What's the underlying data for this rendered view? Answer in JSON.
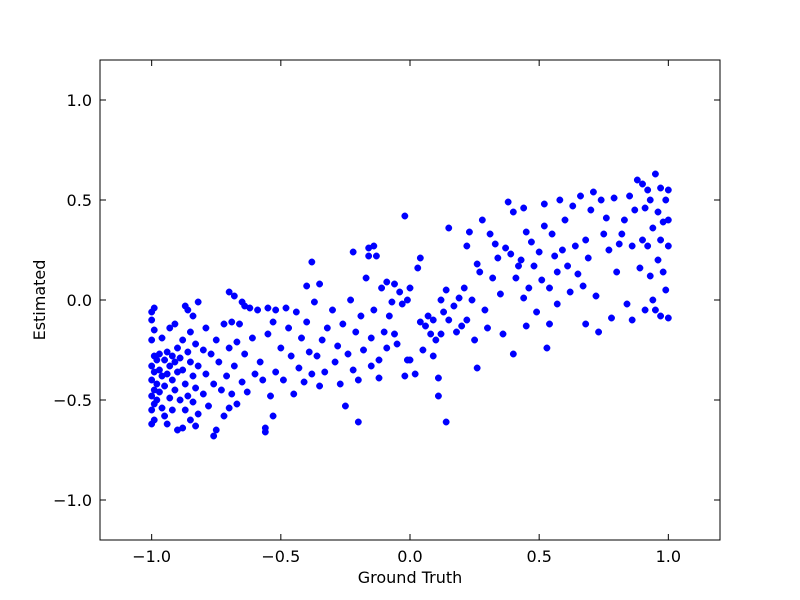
{
  "chart_data": {
    "type": "scatter",
    "title": "",
    "xlabel": "Ground Truth",
    "ylabel": "Estimated",
    "xlim": [
      -1.2,
      1.2
    ],
    "ylim": [
      -1.2,
      1.2
    ],
    "xticks": [
      -1.0,
      -0.5,
      0.0,
      0.5,
      1.0
    ],
    "yticks": [
      -1.0,
      -0.5,
      0.0,
      0.5,
      1.0
    ],
    "xtick_labels": [
      "−1.0",
      "−0.5",
      "0.0",
      "0.5",
      "1.0"
    ],
    "ytick_labels": [
      "−1.0",
      "−0.5",
      "0.0",
      "0.5",
      "1.0"
    ],
    "grid": false,
    "legend": "none",
    "marker_color": "#0000ff",
    "series": [
      {
        "points": [
          [
            -1.0,
            -0.06
          ],
          [
            -0.99,
            -0.04
          ],
          [
            -1.0,
            -0.1
          ],
          [
            -0.99,
            -0.15
          ],
          [
            -1.0,
            -0.2
          ],
          [
            -0.99,
            -0.28
          ],
          [
            -1.0,
            -0.33
          ],
          [
            -0.99,
            -0.36
          ],
          [
            -1.0,
            -0.4
          ],
          [
            -0.99,
            -0.45
          ],
          [
            -1.0,
            -0.48
          ],
          [
            -0.99,
            -0.52
          ],
          [
            -1.0,
            -0.55
          ],
          [
            -0.99,
            -0.6
          ],
          [
            -1.0,
            -0.62
          ],
          [
            -0.98,
            -0.3
          ],
          [
            -0.98,
            -0.42
          ],
          [
            -0.98,
            -0.5
          ],
          [
            -0.97,
            -0.27
          ],
          [
            -0.97,
            -0.35
          ],
          [
            -0.97,
            -0.46
          ],
          [
            -0.96,
            -0.19
          ],
          [
            -0.96,
            -0.38
          ],
          [
            -0.96,
            -0.54
          ],
          [
            -0.95,
            -0.3
          ],
          [
            -0.95,
            -0.43
          ],
          [
            -0.95,
            -0.58
          ],
          [
            -0.94,
            -0.26
          ],
          [
            -0.94,
            -0.37
          ],
          [
            -0.94,
            -0.62
          ],
          [
            -0.93,
            -0.14
          ],
          [
            -0.93,
            -0.33
          ],
          [
            -0.93,
            -0.49
          ],
          [
            -0.92,
            -0.28
          ],
          [
            -0.92,
            -0.4
          ],
          [
            -0.92,
            -0.55
          ],
          [
            -0.91,
            -0.12
          ],
          [
            -0.91,
            -0.31
          ],
          [
            -0.91,
            -0.45
          ],
          [
            -0.9,
            -0.24
          ],
          [
            -0.9,
            -0.36
          ],
          [
            -0.9,
            -0.65
          ],
          [
            -0.89,
            -0.29
          ],
          [
            -0.89,
            -0.5
          ],
          [
            -0.88,
            -0.2
          ],
          [
            -0.88,
            -0.35
          ],
          [
            -0.88,
            -0.64
          ],
          [
            -0.87,
            -0.03
          ],
          [
            -0.87,
            -0.42
          ],
          [
            -0.87,
            -0.55
          ],
          [
            -0.86,
            -0.05
          ],
          [
            -0.86,
            -0.26
          ],
          [
            -0.86,
            -0.48
          ],
          [
            -0.85,
            -0.16
          ],
          [
            -0.85,
            -0.31
          ],
          [
            -0.85,
            -0.6
          ],
          [
            -0.84,
            -0.08
          ],
          [
            -0.84,
            -0.38
          ],
          [
            -0.84,
            -0.51
          ],
          [
            -0.83,
            -0.22
          ],
          [
            -0.83,
            -0.44
          ],
          [
            -0.83,
            -0.63
          ],
          [
            -0.82,
            -0.01
          ],
          [
            -0.82,
            -0.33
          ],
          [
            -0.82,
            -0.57
          ],
          [
            -0.8,
            -0.25
          ],
          [
            -0.8,
            -0.47
          ],
          [
            -0.79,
            -0.14
          ],
          [
            -0.79,
            -0.37
          ],
          [
            -0.78,
            -0.53
          ],
          [
            -0.77,
            -0.27
          ],
          [
            -0.76,
            -0.42
          ],
          [
            -0.76,
            -0.68
          ],
          [
            -0.75,
            -0.2
          ],
          [
            -0.75,
            -0.65
          ],
          [
            -0.74,
            -0.31
          ],
          [
            -0.73,
            -0.45
          ],
          [
            -0.72,
            -0.12
          ],
          [
            -0.72,
            -0.58
          ],
          [
            -0.71,
            -0.38
          ],
          [
            -0.7,
            0.04
          ],
          [
            -0.7,
            -0.24
          ],
          [
            -0.7,
            -0.54
          ],
          [
            -0.69,
            -0.11
          ],
          [
            -0.69,
            -0.47
          ],
          [
            -0.68,
            0.02
          ],
          [
            -0.68,
            -0.33
          ],
          [
            -0.67,
            -0.21
          ],
          [
            -0.67,
            -0.52
          ],
          [
            -0.66,
            -0.12
          ],
          [
            -0.65,
            -0.01
          ],
          [
            -0.65,
            -0.41
          ],
          [
            -0.64,
            -0.03
          ],
          [
            -0.64,
            -0.27
          ],
          [
            -0.63,
            -0.46
          ],
          [
            -0.62,
            -0.04
          ],
          [
            -0.61,
            -0.19
          ],
          [
            -0.6,
            -0.37
          ],
          [
            -0.59,
            -0.05
          ],
          [
            -0.58,
            -0.31
          ],
          [
            -0.57,
            -0.4
          ],
          [
            -0.56,
            -0.64
          ],
          [
            -0.56,
            -0.66
          ],
          [
            -0.55,
            -0.04
          ],
          [
            -0.55,
            -0.17
          ],
          [
            -0.54,
            -0.48
          ],
          [
            -0.53,
            -0.11
          ],
          [
            -0.53,
            -0.58
          ],
          [
            -0.52,
            -0.05
          ],
          [
            -0.52,
            -0.36
          ],
          [
            -0.5,
            -0.24
          ],
          [
            -0.49,
            -0.4
          ],
          [
            -0.48,
            -0.04
          ],
          [
            -0.47,
            -0.14
          ],
          [
            -0.46,
            -0.28
          ],
          [
            -0.45,
            -0.47
          ],
          [
            -0.44,
            -0.06
          ],
          [
            -0.43,
            -0.34
          ],
          [
            -0.42,
            -0.19
          ],
          [
            -0.41,
            -0.41
          ],
          [
            -0.4,
            0.07
          ],
          [
            -0.4,
            -0.11
          ],
          [
            -0.39,
            -0.26
          ],
          [
            -0.38,
            0.19
          ],
          [
            -0.38,
            -0.37
          ],
          [
            -0.37,
            -0.01
          ],
          [
            -0.36,
            -0.28
          ],
          [
            -0.35,
            0.08
          ],
          [
            -0.35,
            -0.43
          ],
          [
            -0.34,
            -0.2
          ],
          [
            -0.33,
            -0.36
          ],
          [
            -0.32,
            -0.14
          ],
          [
            -0.3,
            -0.05
          ],
          [
            -0.29,
            -0.31
          ],
          [
            -0.28,
            -0.23
          ],
          [
            -0.27,
            -0.42
          ],
          [
            -0.26,
            -0.12
          ],
          [
            -0.25,
            -0.53
          ],
          [
            -0.24,
            -0.27
          ],
          [
            -0.23,
            0.0
          ],
          [
            -0.22,
            0.24
          ],
          [
            -0.22,
            -0.35
          ],
          [
            -0.21,
            -0.16
          ],
          [
            -0.2,
            -0.4
          ],
          [
            -0.2,
            -0.61
          ],
          [
            -0.19,
            -0.08
          ],
          [
            -0.18,
            -0.25
          ],
          [
            -0.17,
            0.11
          ],
          [
            -0.16,
            0.26
          ],
          [
            -0.16,
            0.22
          ],
          [
            -0.15,
            -0.19
          ],
          [
            -0.15,
            -0.33
          ],
          [
            -0.14,
            0.27
          ],
          [
            -0.14,
            -0.05
          ],
          [
            -0.13,
            0.22
          ],
          [
            -0.12,
            -0.3
          ],
          [
            -0.12,
            -0.39
          ],
          [
            -0.11,
            0.06
          ],
          [
            -0.1,
            -0.16
          ],
          [
            -0.09,
            0.09
          ],
          [
            -0.09,
            -0.24
          ],
          [
            -0.08,
            -0.08
          ],
          [
            -0.07,
            -0.01
          ],
          [
            -0.06,
            0.08
          ],
          [
            -0.06,
            -0.17
          ],
          [
            -0.05,
            -0.22
          ],
          [
            -0.04,
            0.04
          ],
          [
            -0.03,
            -0.02
          ],
          [
            -0.02,
            0.42
          ],
          [
            -0.02,
            -0.38
          ],
          [
            -0.01,
            0.0
          ],
          [
            -0.01,
            -0.3
          ],
          [
            0.0,
            0.06
          ],
          [
            0.0,
            -0.3
          ],
          [
            0.02,
            -0.37
          ],
          [
            0.03,
            0.16
          ],
          [
            0.04,
            0.21
          ],
          [
            0.04,
            -0.11
          ],
          [
            0.05,
            -0.25
          ],
          [
            0.06,
            -0.13
          ],
          [
            0.07,
            -0.08
          ],
          [
            0.08,
            -0.17
          ],
          [
            0.09,
            -0.1
          ],
          [
            0.09,
            -0.28
          ],
          [
            0.1,
            -0.2
          ],
          [
            0.11,
            -0.39
          ],
          [
            0.11,
            -0.48
          ],
          [
            0.12,
            -0.17
          ],
          [
            0.12,
            0.0
          ],
          [
            0.13,
            -0.06
          ],
          [
            0.14,
            0.05
          ],
          [
            0.15,
            0.36
          ],
          [
            0.15,
            -0.1
          ],
          [
            0.14,
            -0.61
          ],
          [
            0.17,
            -0.03
          ],
          [
            0.18,
            -0.16
          ],
          [
            0.19,
            0.01
          ],
          [
            0.2,
            -0.13
          ],
          [
            0.21,
            0.06
          ],
          [
            0.22,
            0.27
          ],
          [
            0.22,
            -0.1
          ],
          [
            0.23,
            0.34
          ],
          [
            0.24,
            0.0
          ],
          [
            0.25,
            -0.2
          ],
          [
            0.26,
            -0.34
          ],
          [
            0.26,
            0.18
          ],
          [
            0.27,
            0.14
          ],
          [
            0.28,
            0.4
          ],
          [
            0.29,
            -0.05
          ],
          [
            0.3,
            -0.14
          ],
          [
            0.31,
            0.33
          ],
          [
            0.32,
            0.11
          ],
          [
            0.33,
            0.28
          ],
          [
            0.34,
            0.21
          ],
          [
            0.35,
            0.03
          ],
          [
            0.36,
            -0.17
          ],
          [
            0.37,
            0.26
          ],
          [
            0.38,
            0.49
          ],
          [
            0.39,
            0.23
          ],
          [
            0.4,
            -0.27
          ],
          [
            0.4,
            0.44
          ],
          [
            0.41,
            0.11
          ],
          [
            0.42,
            0.17
          ],
          [
            0.43,
            0.2
          ],
          [
            0.44,
            0.46
          ],
          [
            0.44,
            0.01
          ],
          [
            0.45,
            0.34
          ],
          [
            0.45,
            -0.13
          ],
          [
            0.46,
            0.06
          ],
          [
            0.47,
            0.29
          ],
          [
            0.48,
            0.17
          ],
          [
            0.49,
            -0.06
          ],
          [
            0.5,
            0.24
          ],
          [
            0.51,
            0.1
          ],
          [
            0.52,
            0.37
          ],
          [
            0.52,
            0.48
          ],
          [
            0.53,
            -0.24
          ],
          [
            0.54,
            -0.12
          ],
          [
            0.54,
            0.06
          ],
          [
            0.55,
            0.33
          ],
          [
            0.56,
            0.22
          ],
          [
            0.57,
            0.14
          ],
          [
            0.57,
            -0.02
          ],
          [
            0.58,
            0.5
          ],
          [
            0.59,
            0.25
          ],
          [
            0.6,
            0.4
          ],
          [
            0.61,
            0.17
          ],
          [
            0.62,
            0.04
          ],
          [
            0.63,
            0.47
          ],
          [
            0.64,
            0.27
          ],
          [
            0.65,
            0.13
          ],
          [
            0.66,
            0.52
          ],
          [
            0.67,
            0.07
          ],
          [
            0.68,
            0.3
          ],
          [
            0.68,
            -0.12
          ],
          [
            0.69,
            0.21
          ],
          [
            0.7,
            0.45
          ],
          [
            0.71,
            0.54
          ],
          [
            0.72,
            0.02
          ],
          [
            0.73,
            -0.16
          ],
          [
            0.74,
            0.5
          ],
          [
            0.75,
            0.33
          ],
          [
            0.76,
            0.41
          ],
          [
            0.77,
            0.25
          ],
          [
            0.78,
            -0.09
          ],
          [
            0.79,
            0.51
          ],
          [
            0.8,
            0.14
          ],
          [
            0.81,
            0.28
          ],
          [
            0.82,
            0.33
          ],
          [
            0.83,
            0.4
          ],
          [
            0.84,
            -0.02
          ],
          [
            0.85,
            0.52
          ],
          [
            0.86,
            0.27
          ],
          [
            0.86,
            -0.1
          ],
          [
            0.87,
            0.45
          ],
          [
            0.88,
            0.6
          ],
          [
            0.89,
            0.16
          ],
          [
            0.9,
            0.3
          ],
          [
            0.9,
            0.58
          ],
          [
            0.91,
            -0.05
          ],
          [
            0.91,
            0.46
          ],
          [
            0.92,
            0.27
          ],
          [
            0.92,
            0.55
          ],
          [
            0.93,
            0.12
          ],
          [
            0.93,
            0.5
          ],
          [
            0.94,
            0.0
          ],
          [
            0.94,
            0.36
          ],
          [
            0.95,
            0.63
          ],
          [
            0.95,
            -0.05
          ],
          [
            0.96,
            0.2
          ],
          [
            0.96,
            0.44
          ],
          [
            0.97,
            0.3
          ],
          [
            0.97,
            0.56
          ],
          [
            0.97,
            -0.08
          ],
          [
            0.98,
            0.14
          ],
          [
            0.98,
            0.39
          ],
          [
            0.99,
            0.05
          ],
          [
            0.99,
            0.5
          ],
          [
            1.0,
            -0.09
          ],
          [
            1.0,
            0.4
          ],
          [
            1.0,
            0.55
          ],
          [
            1.0,
            0.27
          ]
        ]
      }
    ]
  }
}
